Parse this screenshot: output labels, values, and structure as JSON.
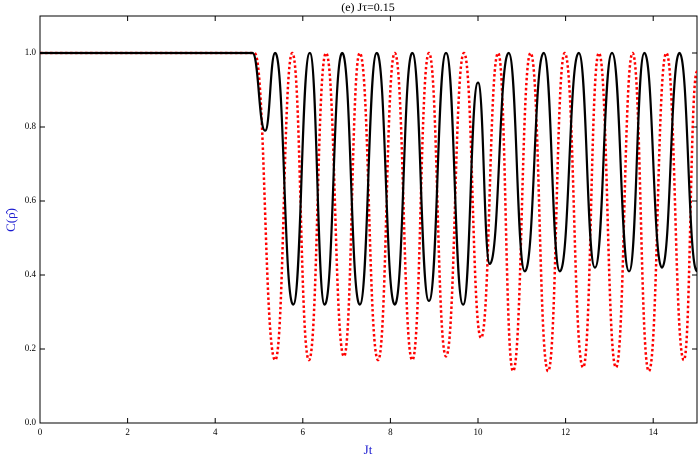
{
  "chart_data": {
    "type": "line",
    "title": "(e) Jτ=0.15",
    "xlabel": "Jt",
    "ylabel": "C(ρ̂)",
    "xlim": [
      0,
      15
    ],
    "ylim": [
      0,
      1.1
    ],
    "xticks": [
      0,
      2,
      4,
      6,
      8,
      10,
      12,
      14
    ],
    "yticks": [
      {
        "value": 0,
        "label": "0.0"
      },
      0.2,
      0.4,
      0.6,
      0.8,
      {
        "value": 1,
        "label": "1.0"
      }
    ],
    "series": [
      {
        "color": "#000000",
        "dash": "solid",
        "x": [
          0,
          4.85,
          5.14,
          5.37,
          5.78,
          6.16,
          6.5,
          6.9,
          7.3,
          7.69,
          8.1,
          8.5,
          8.88,
          9.27,
          9.66,
          10.0,
          10.27,
          10.7,
          11.07,
          11.5,
          11.87,
          12.3,
          12.67,
          13.06,
          13.45,
          13.8,
          14.2,
          14.6,
          15
        ],
        "values": [
          1,
          1,
          0.79,
          1,
          0.32,
          1,
          0.32,
          1,
          0.32,
          1,
          0.32,
          1,
          0.33,
          1,
          0.32,
          0.92,
          0.43,
          1,
          0.41,
          1,
          0.41,
          1,
          0.42,
          1,
          0.41,
          1,
          0.42,
          1,
          0.41
        ]
      },
      {
        "color": "#ff0000",
        "dash": "dotted",
        "x": [
          0,
          4.9,
          5.37,
          5.76,
          6.14,
          6.53,
          6.94,
          7.3,
          7.72,
          8.1,
          8.5,
          8.88,
          9.27,
          9.68,
          10.07,
          10.46,
          10.8,
          11.2,
          11.6,
          11.98,
          12.4,
          12.76,
          13.15,
          13.53,
          13.9,
          14.3,
          14.7,
          15
        ],
        "values": [
          1,
          1,
          0.17,
          1,
          0.17,
          1,
          0.18,
          1,
          0.17,
          1,
          0.17,
          1,
          0.18,
          1,
          0.23,
          1,
          0.14,
          1,
          0.14,
          1,
          0.15,
          1,
          0.15,
          1,
          0.14,
          1,
          0.17,
          0.95
        ]
      }
    ]
  }
}
